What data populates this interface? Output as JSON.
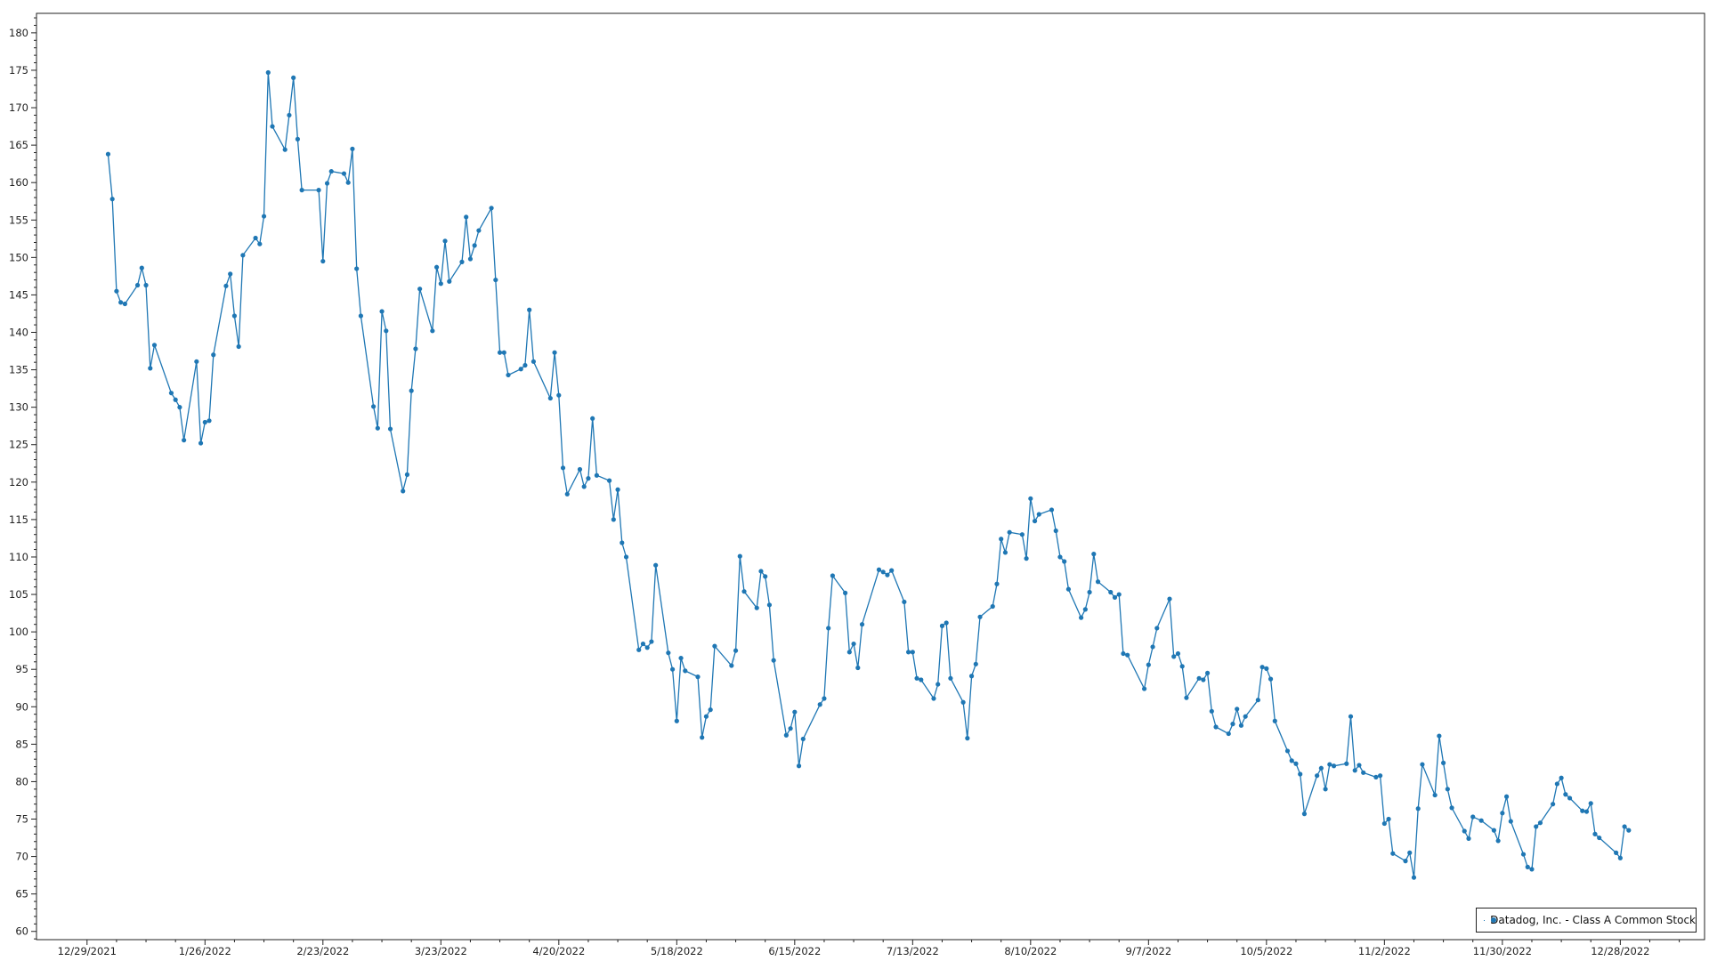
{
  "chart_data": {
    "type": "line",
    "title": "",
    "xlabel": "",
    "ylabel": "",
    "xlim": [
      "2021-12-17",
      "2023-01-17"
    ],
    "ylim": [
      58.9,
      182.6
    ],
    "grid": true,
    "legend_position": "bottom-right",
    "line_color": "#1f77b4",
    "x_tick_labels": [
      "12/29/2021",
      "1/26/2022",
      "2/23/2022",
      "3/23/2022",
      "4/20/2022",
      "5/18/2022",
      "6/15/2022",
      "7/13/2022",
      "8/10/2022",
      "9/7/2022",
      "10/5/2022",
      "11/2/2022",
      "11/30/2022",
      "12/28/2022"
    ],
    "y_ticks": [
      60,
      65,
      70,
      75,
      80,
      85,
      90,
      95,
      100,
      105,
      110,
      115,
      120,
      125,
      130,
      135,
      140,
      145,
      150,
      155,
      160,
      165,
      170,
      175,
      180
    ],
    "series": [
      {
        "name": "Datadog, Inc. - Class A Common Stock",
        "points": [
          [
            "2022-01-03",
            163.8
          ],
          [
            "2022-01-04",
            157.8
          ],
          [
            "2022-01-05",
            145.5
          ],
          [
            "2022-01-06",
            144.0
          ],
          [
            "2022-01-07",
            143.8
          ],
          [
            "2022-01-10",
            146.3
          ],
          [
            "2022-01-11",
            148.6
          ],
          [
            "2022-01-12",
            146.3
          ],
          [
            "2022-01-13",
            135.2
          ],
          [
            "2022-01-14",
            138.3
          ],
          [
            "2022-01-18",
            131.9
          ],
          [
            "2022-01-19",
            131.0
          ],
          [
            "2022-01-20",
            130.0
          ],
          [
            "2022-01-21",
            125.6
          ],
          [
            "2022-01-24",
            136.1
          ],
          [
            "2022-01-25",
            125.2
          ],
          [
            "2022-01-26",
            128.0
          ],
          [
            "2022-01-27",
            128.2
          ],
          [
            "2022-01-28",
            137.0
          ],
          [
            "2022-01-31",
            146.2
          ],
          [
            "2022-02-01",
            147.8
          ],
          [
            "2022-02-02",
            142.2
          ],
          [
            "2022-02-03",
            138.1
          ],
          [
            "2022-02-04",
            150.3
          ],
          [
            "2022-02-07",
            152.6
          ],
          [
            "2022-02-08",
            151.8
          ],
          [
            "2022-02-09",
            155.5
          ],
          [
            "2022-02-10",
            174.7
          ],
          [
            "2022-02-11",
            167.5
          ],
          [
            "2022-02-14",
            164.4
          ],
          [
            "2022-02-15",
            169.0
          ],
          [
            "2022-02-16",
            174.0
          ],
          [
            "2022-02-17",
            165.8
          ],
          [
            "2022-02-18",
            159.0
          ],
          [
            "2022-02-22",
            159.0
          ],
          [
            "2022-02-23",
            149.5
          ],
          [
            "2022-02-24",
            159.9
          ],
          [
            "2022-02-25",
            161.5
          ],
          [
            "2022-02-28",
            161.2
          ],
          [
            "2022-03-01",
            160.0
          ],
          [
            "2022-03-02",
            164.5
          ],
          [
            "2022-03-03",
            148.5
          ],
          [
            "2022-03-04",
            142.2
          ],
          [
            "2022-03-07",
            130.1
          ],
          [
            "2022-03-08",
            127.2
          ],
          [
            "2022-03-09",
            142.8
          ],
          [
            "2022-03-10",
            140.2
          ],
          [
            "2022-03-11",
            127.1
          ],
          [
            "2022-03-14",
            118.8
          ],
          [
            "2022-03-15",
            121.0
          ],
          [
            "2022-03-16",
            132.2
          ],
          [
            "2022-03-17",
            137.8
          ],
          [
            "2022-03-18",
            145.8
          ],
          [
            "2022-03-21",
            140.2
          ],
          [
            "2022-03-22",
            148.7
          ],
          [
            "2022-03-23",
            146.5
          ],
          [
            "2022-03-24",
            152.2
          ],
          [
            "2022-03-25",
            146.8
          ],
          [
            "2022-03-28",
            149.4
          ],
          [
            "2022-03-29",
            155.4
          ],
          [
            "2022-03-30",
            149.8
          ],
          [
            "2022-03-31",
            151.6
          ],
          [
            "2022-04-01",
            153.6
          ],
          [
            "2022-04-04",
            156.6
          ],
          [
            "2022-04-05",
            147.0
          ],
          [
            "2022-04-06",
            137.3
          ],
          [
            "2022-04-07",
            137.3
          ],
          [
            "2022-04-08",
            134.3
          ],
          [
            "2022-04-11",
            135.1
          ],
          [
            "2022-04-12",
            135.6
          ],
          [
            "2022-04-13",
            143.0
          ],
          [
            "2022-04-14",
            136.1
          ],
          [
            "2022-04-18",
            131.2
          ],
          [
            "2022-04-19",
            137.3
          ],
          [
            "2022-04-20",
            131.6
          ],
          [
            "2022-04-21",
            121.9
          ],
          [
            "2022-04-22",
            118.4
          ],
          [
            "2022-04-25",
            121.7
          ],
          [
            "2022-04-26",
            119.4
          ],
          [
            "2022-04-27",
            120.5
          ],
          [
            "2022-04-28",
            128.5
          ],
          [
            "2022-04-29",
            120.9
          ],
          [
            "2022-05-02",
            120.2
          ],
          [
            "2022-05-03",
            115.0
          ],
          [
            "2022-05-04",
            119.0
          ],
          [
            "2022-05-05",
            111.9
          ],
          [
            "2022-05-06",
            110.0
          ],
          [
            "2022-05-09",
            97.6
          ],
          [
            "2022-05-10",
            98.4
          ],
          [
            "2022-05-11",
            97.9
          ],
          [
            "2022-05-12",
            98.7
          ],
          [
            "2022-05-13",
            108.9
          ],
          [
            "2022-05-16",
            97.2
          ],
          [
            "2022-05-17",
            95.0
          ],
          [
            "2022-05-18",
            88.1
          ],
          [
            "2022-05-19",
            96.5
          ],
          [
            "2022-05-20",
            94.8
          ],
          [
            "2022-05-23",
            94.0
          ],
          [
            "2022-05-24",
            85.9
          ],
          [
            "2022-05-25",
            88.7
          ],
          [
            "2022-05-26",
            89.6
          ],
          [
            "2022-05-27",
            98.1
          ],
          [
            "2022-05-31",
            95.5
          ],
          [
            "2022-06-01",
            97.5
          ],
          [
            "2022-06-02",
            110.1
          ],
          [
            "2022-06-03",
            105.4
          ],
          [
            "2022-06-06",
            103.2
          ],
          [
            "2022-06-07",
            108.1
          ],
          [
            "2022-06-08",
            107.4
          ],
          [
            "2022-06-09",
            103.6
          ],
          [
            "2022-06-10",
            96.2
          ],
          [
            "2022-06-13",
            86.2
          ],
          [
            "2022-06-14",
            87.1
          ],
          [
            "2022-06-15",
            89.3
          ],
          [
            "2022-06-16",
            82.1
          ],
          [
            "2022-06-17",
            85.7
          ],
          [
            "2022-06-21",
            90.3
          ],
          [
            "2022-06-22",
            91.1
          ],
          [
            "2022-06-23",
            100.5
          ],
          [
            "2022-06-24",
            107.5
          ],
          [
            "2022-06-27",
            105.2
          ],
          [
            "2022-06-28",
            97.3
          ],
          [
            "2022-06-29",
            98.4
          ],
          [
            "2022-06-30",
            95.2
          ],
          [
            "2022-07-01",
            101.0
          ],
          [
            "2022-07-05",
            108.3
          ],
          [
            "2022-07-06",
            108.0
          ],
          [
            "2022-07-07",
            107.6
          ],
          [
            "2022-07-08",
            108.2
          ],
          [
            "2022-07-11",
            104.0
          ],
          [
            "2022-07-12",
            97.3
          ],
          [
            "2022-07-13",
            97.3
          ],
          [
            "2022-07-14",
            93.8
          ],
          [
            "2022-07-15",
            93.6
          ],
          [
            "2022-07-18",
            91.1
          ],
          [
            "2022-07-19",
            93.0
          ],
          [
            "2022-07-20",
            100.8
          ],
          [
            "2022-07-21",
            101.2
          ],
          [
            "2022-07-22",
            93.8
          ],
          [
            "2022-07-25",
            90.6
          ],
          [
            "2022-07-26",
            85.8
          ],
          [
            "2022-07-27",
            94.1
          ],
          [
            "2022-07-28",
            95.7
          ],
          [
            "2022-07-29",
            102.0
          ],
          [
            "2022-08-01",
            103.4
          ],
          [
            "2022-08-02",
            106.4
          ],
          [
            "2022-08-03",
            112.4
          ],
          [
            "2022-08-04",
            110.6
          ],
          [
            "2022-08-05",
            113.3
          ],
          [
            "2022-08-08",
            113.0
          ],
          [
            "2022-08-09",
            109.8
          ],
          [
            "2022-08-10",
            117.8
          ],
          [
            "2022-08-11",
            114.8
          ],
          [
            "2022-08-12",
            115.7
          ],
          [
            "2022-08-15",
            116.3
          ],
          [
            "2022-08-16",
            113.5
          ],
          [
            "2022-08-17",
            110.0
          ],
          [
            "2022-08-18",
            109.4
          ],
          [
            "2022-08-19",
            105.7
          ],
          [
            "2022-08-22",
            101.9
          ],
          [
            "2022-08-23",
            103.0
          ],
          [
            "2022-08-24",
            105.3
          ],
          [
            "2022-08-25",
            110.4
          ],
          [
            "2022-08-26",
            106.7
          ],
          [
            "2022-08-29",
            105.3
          ],
          [
            "2022-08-30",
            104.6
          ],
          [
            "2022-08-31",
            105.0
          ],
          [
            "2022-09-01",
            97.1
          ],
          [
            "2022-09-02",
            96.9
          ],
          [
            "2022-09-06",
            92.4
          ],
          [
            "2022-09-07",
            95.6
          ],
          [
            "2022-09-08",
            98.0
          ],
          [
            "2022-09-09",
            100.5
          ],
          [
            "2022-09-12",
            104.4
          ],
          [
            "2022-09-13",
            96.7
          ],
          [
            "2022-09-14",
            97.1
          ],
          [
            "2022-09-15",
            95.4
          ],
          [
            "2022-09-16",
            91.2
          ],
          [
            "2022-09-19",
            93.8
          ],
          [
            "2022-09-20",
            93.6
          ],
          [
            "2022-09-21",
            94.5
          ],
          [
            "2022-09-22",
            89.4
          ],
          [
            "2022-09-23",
            87.3
          ],
          [
            "2022-09-26",
            86.4
          ],
          [
            "2022-09-27",
            87.7
          ],
          [
            "2022-09-28",
            89.7
          ],
          [
            "2022-09-29",
            87.5
          ],
          [
            "2022-09-30",
            88.7
          ],
          [
            "2022-10-03",
            90.9
          ],
          [
            "2022-10-04",
            95.3
          ],
          [
            "2022-10-05",
            95.1
          ],
          [
            "2022-10-06",
            93.7
          ],
          [
            "2022-10-07",
            88.1
          ],
          [
            "2022-10-10",
            84.1
          ],
          [
            "2022-10-11",
            82.8
          ],
          [
            "2022-10-12",
            82.4
          ],
          [
            "2022-10-13",
            81.0
          ],
          [
            "2022-10-14",
            75.7
          ],
          [
            "2022-10-17",
            80.8
          ],
          [
            "2022-10-18",
            81.8
          ],
          [
            "2022-10-19",
            79.0
          ],
          [
            "2022-10-20",
            82.3
          ],
          [
            "2022-10-21",
            82.1
          ],
          [
            "2022-10-24",
            82.4
          ],
          [
            "2022-10-25",
            88.7
          ],
          [
            "2022-10-26",
            81.5
          ],
          [
            "2022-10-27",
            82.2
          ],
          [
            "2022-10-28",
            81.2
          ],
          [
            "2022-10-31",
            80.6
          ],
          [
            "2022-11-01",
            80.8
          ],
          [
            "2022-11-02",
            74.4
          ],
          [
            "2022-11-03",
            75.0
          ],
          [
            "2022-11-04",
            70.4
          ],
          [
            "2022-11-07",
            69.4
          ],
          [
            "2022-11-08",
            70.5
          ],
          [
            "2022-11-09",
            67.2
          ],
          [
            "2022-11-10",
            76.4
          ],
          [
            "2022-11-11",
            82.3
          ],
          [
            "2022-11-14",
            78.2
          ],
          [
            "2022-11-15",
            86.1
          ],
          [
            "2022-11-16",
            82.5
          ],
          [
            "2022-11-17",
            79.0
          ],
          [
            "2022-11-18",
            76.5
          ],
          [
            "2022-11-21",
            73.4
          ],
          [
            "2022-11-22",
            72.4
          ],
          [
            "2022-11-23",
            75.3
          ],
          [
            "2022-11-25",
            74.8
          ],
          [
            "2022-11-28",
            73.5
          ],
          [
            "2022-11-29",
            72.1
          ],
          [
            "2022-11-30",
            75.8
          ],
          [
            "2022-12-01",
            78.0
          ],
          [
            "2022-12-02",
            74.7
          ],
          [
            "2022-12-05",
            70.3
          ],
          [
            "2022-12-06",
            68.6
          ],
          [
            "2022-12-07",
            68.3
          ],
          [
            "2022-12-08",
            74.0
          ],
          [
            "2022-12-09",
            74.5
          ],
          [
            "2022-12-12",
            77.0
          ],
          [
            "2022-12-13",
            79.7
          ],
          [
            "2022-12-14",
            80.5
          ],
          [
            "2022-12-15",
            78.3
          ],
          [
            "2022-12-16",
            77.8
          ],
          [
            "2022-12-19",
            76.1
          ],
          [
            "2022-12-20",
            76.0
          ],
          [
            "2022-12-21",
            77.1
          ],
          [
            "2022-12-22",
            73.0
          ],
          [
            "2022-12-23",
            72.5
          ],
          [
            "2022-12-27",
            70.5
          ],
          [
            "2022-12-28",
            69.8
          ],
          [
            "2022-12-29",
            74.0
          ],
          [
            "2022-12-30",
            73.5
          ]
        ]
      }
    ]
  }
}
